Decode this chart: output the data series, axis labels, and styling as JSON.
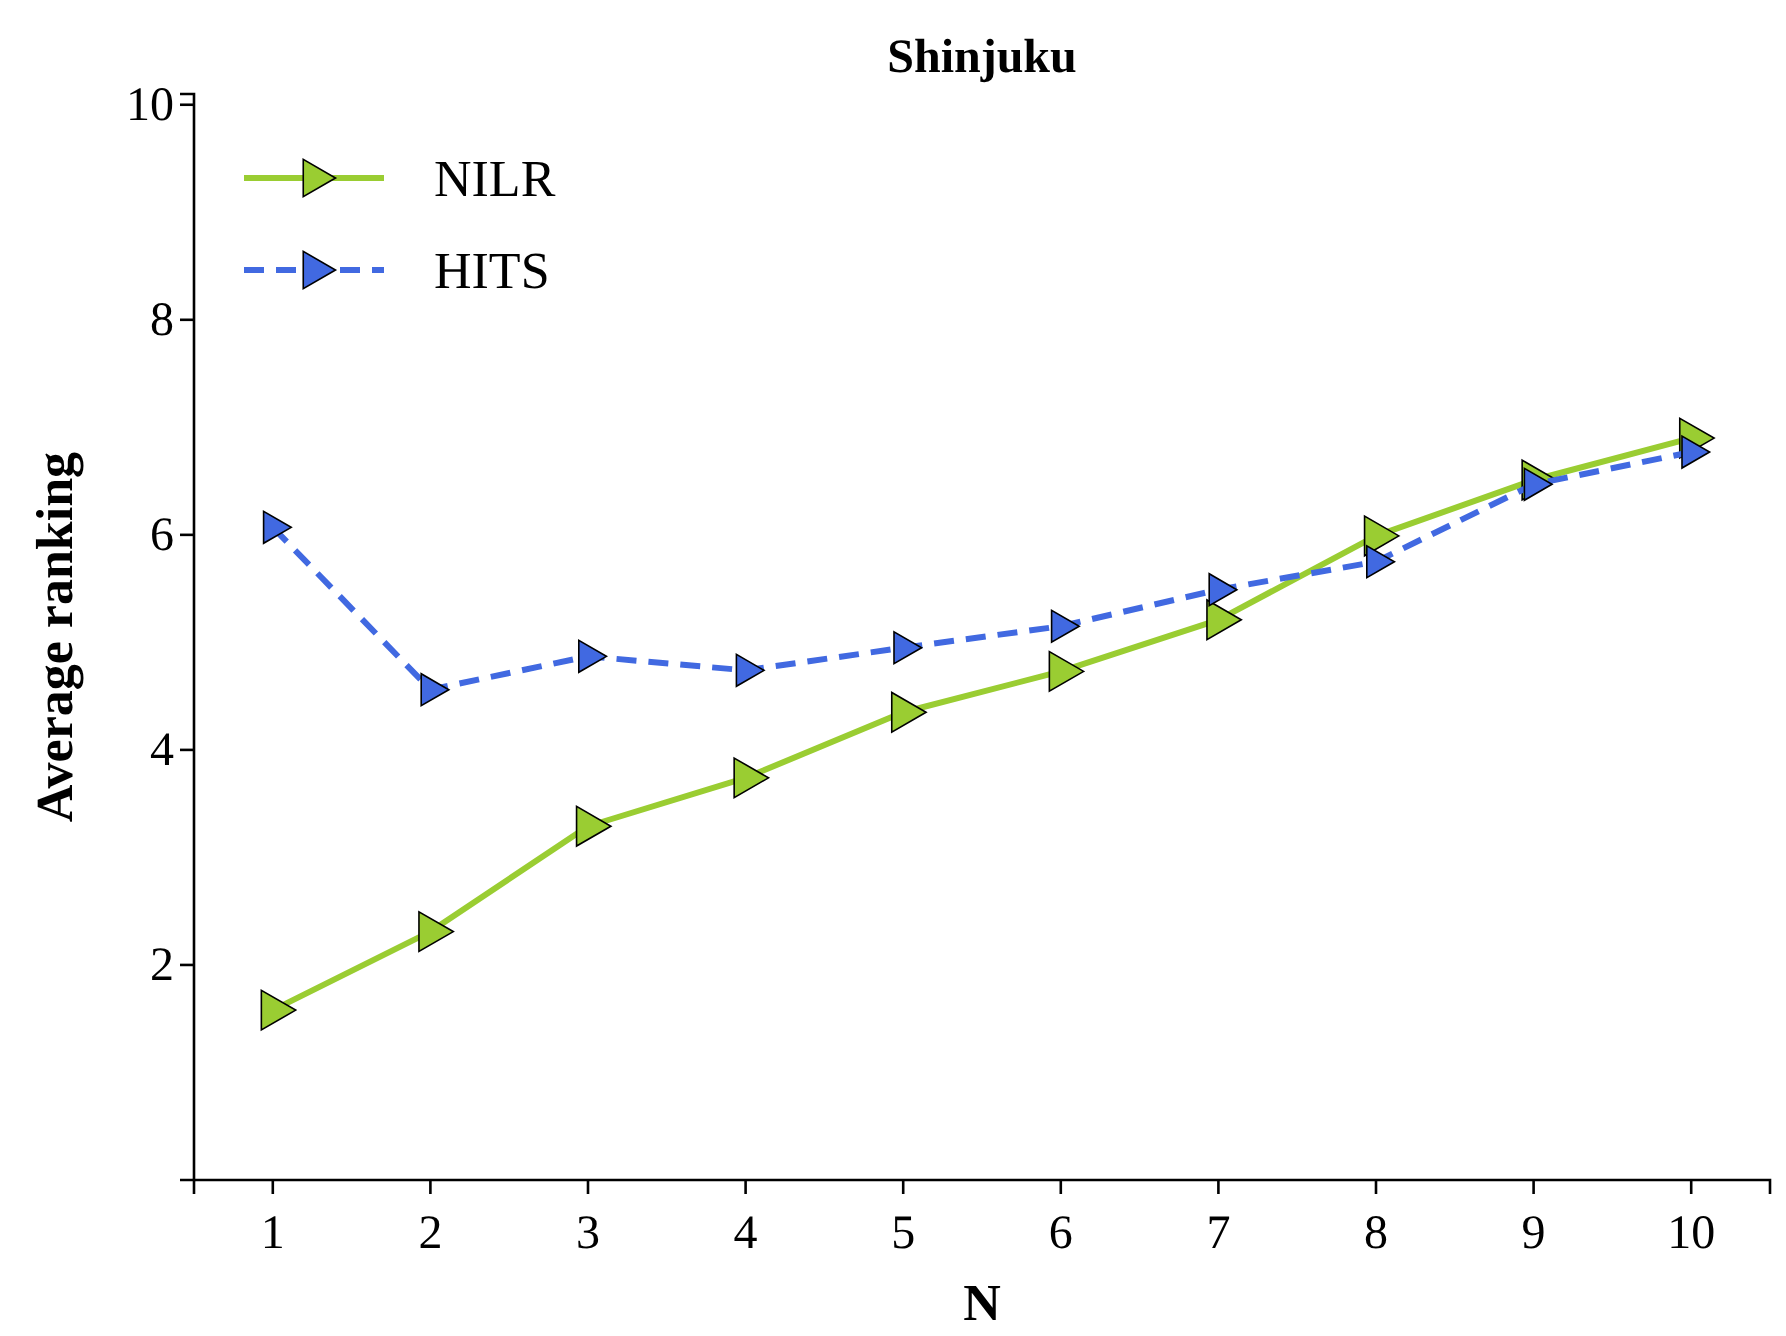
{
  "chart_data": {
    "type": "line",
    "title": "Shinjuku",
    "xlabel": "N",
    "ylabel": "Average ranking",
    "x": [
      1,
      2,
      3,
      4,
      5,
      6,
      7,
      8,
      9,
      10
    ],
    "xlim": [
      0.5,
      10.5
    ],
    "xticks": [
      1,
      2,
      3,
      4,
      5,
      6,
      7,
      8,
      9,
      10
    ],
    "ylim": [
      0,
      10.1
    ],
    "yticks": [
      2,
      4,
      6,
      8,
      10
    ],
    "grid": false,
    "legend": "top left",
    "marker": "triangle",
    "series": [
      {
        "name": "NILR",
        "color": "#9acd32",
        "line_style": "solid",
        "values": [
          1.58,
          2.31,
          3.29,
          3.74,
          4.35,
          4.73,
          5.21,
          5.99,
          6.51,
          6.9
        ]
      },
      {
        "name": "HITS",
        "color": "#4169e1",
        "line_style": "dashed",
        "values": [
          6.07,
          4.56,
          4.87,
          4.74,
          4.95,
          5.15,
          5.49,
          5.75,
          6.47,
          6.77
        ]
      }
    ]
  }
}
